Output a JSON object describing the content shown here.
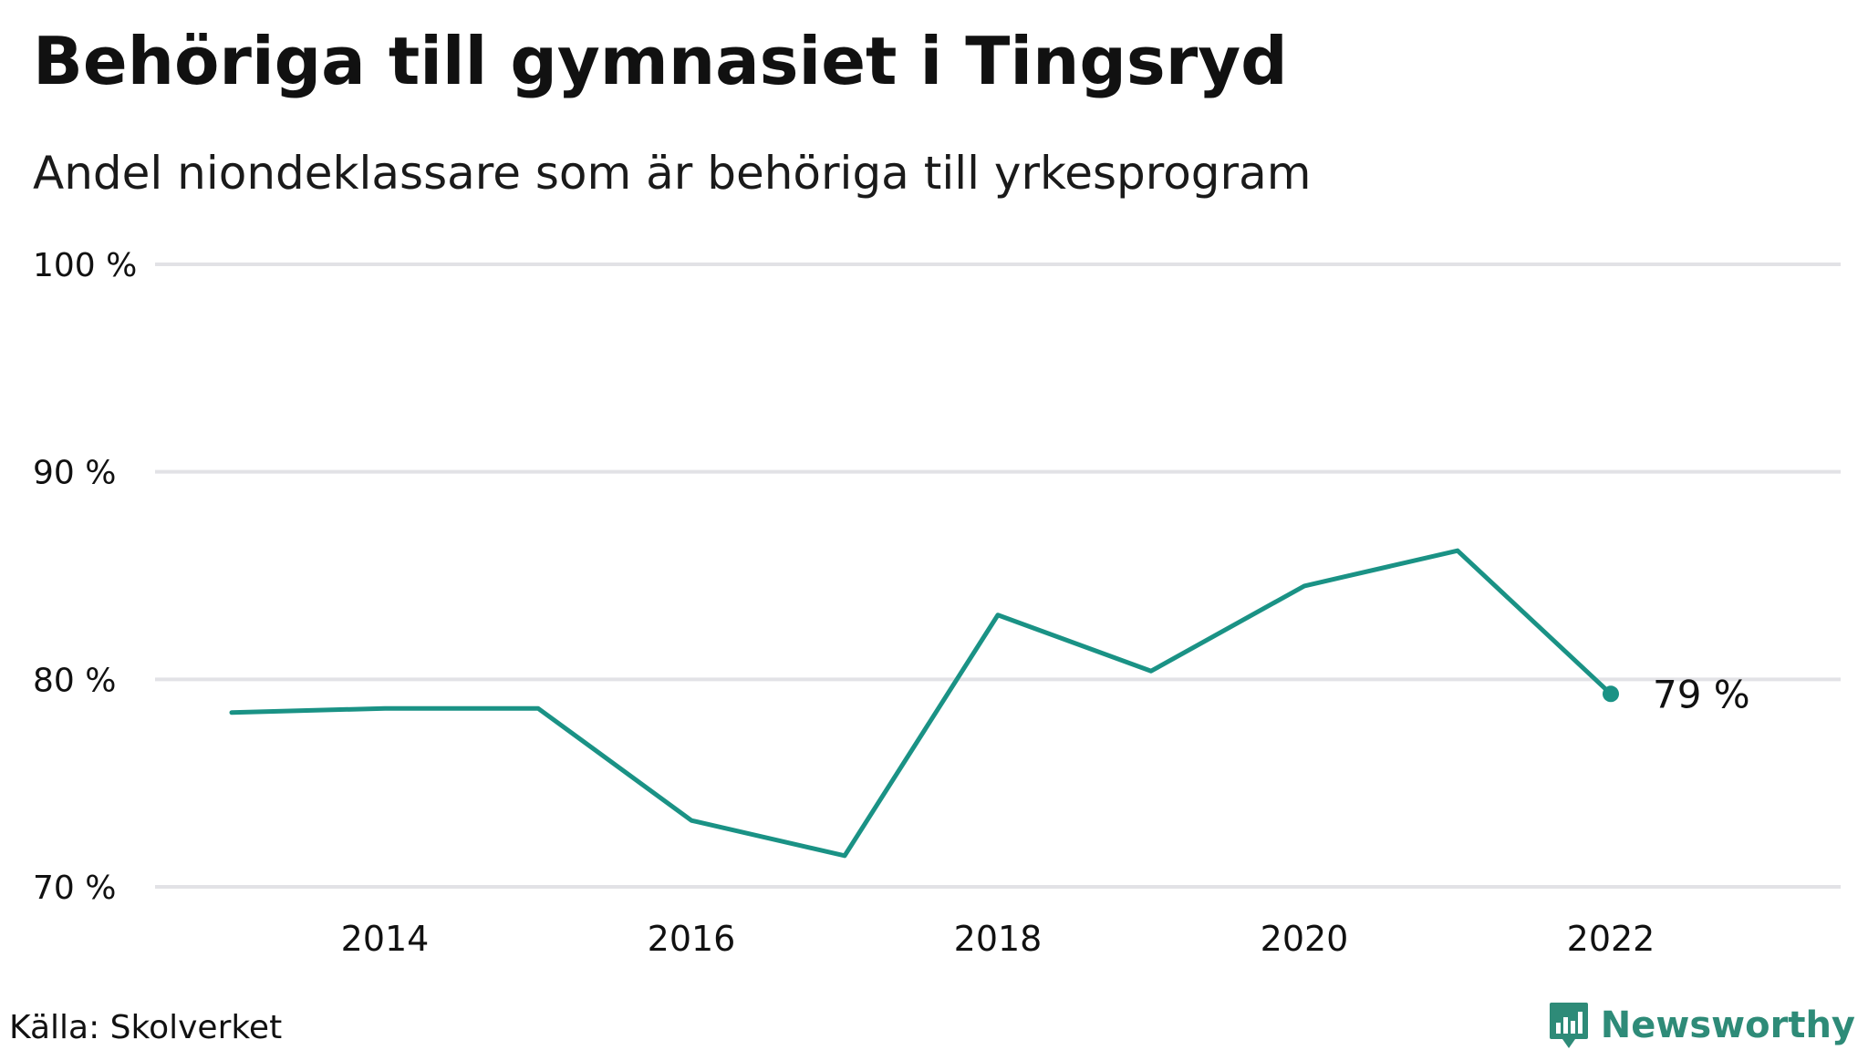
{
  "chart_data": {
    "type": "line",
    "title": "Behöriga till gymnasiet i Tingsryd",
    "subtitle": "Andel niondeklassare som är behöriga till yrkesprogram",
    "xlabel": "",
    "ylabel": "",
    "x": [
      2013,
      2014,
      2015,
      2016,
      2017,
      2018,
      2019,
      2020,
      2021,
      2022
    ],
    "series": [
      {
        "values": [
          78.4,
          78.6,
          78.6,
          73.2,
          71.5,
          83.1,
          80.4,
          84.5,
          86.2,
          79.3
        ]
      }
    ],
    "xlim": [
      2012.5,
      2023.5
    ],
    "ylim": [
      70,
      100
    ],
    "x_ticks": [
      2014,
      2016,
      2018,
      2020,
      2022
    ],
    "x_tick_labels": [
      "2014",
      "2016",
      "2018",
      "2020",
      "2022"
    ],
    "y_ticks": [
      70,
      80,
      90,
      100
    ],
    "y_tick_labels": [
      "70 %",
      "80 %",
      "90 %",
      "100 %"
    ],
    "grid": "horizontal",
    "end_label": "79  %",
    "line_color": "#1a9285",
    "grid_color": "#e2e2e6"
  },
  "footer": {
    "source": "Källa: Skolverket",
    "brand": "Newsworthy",
    "brand_color": "#2e8b78"
  }
}
